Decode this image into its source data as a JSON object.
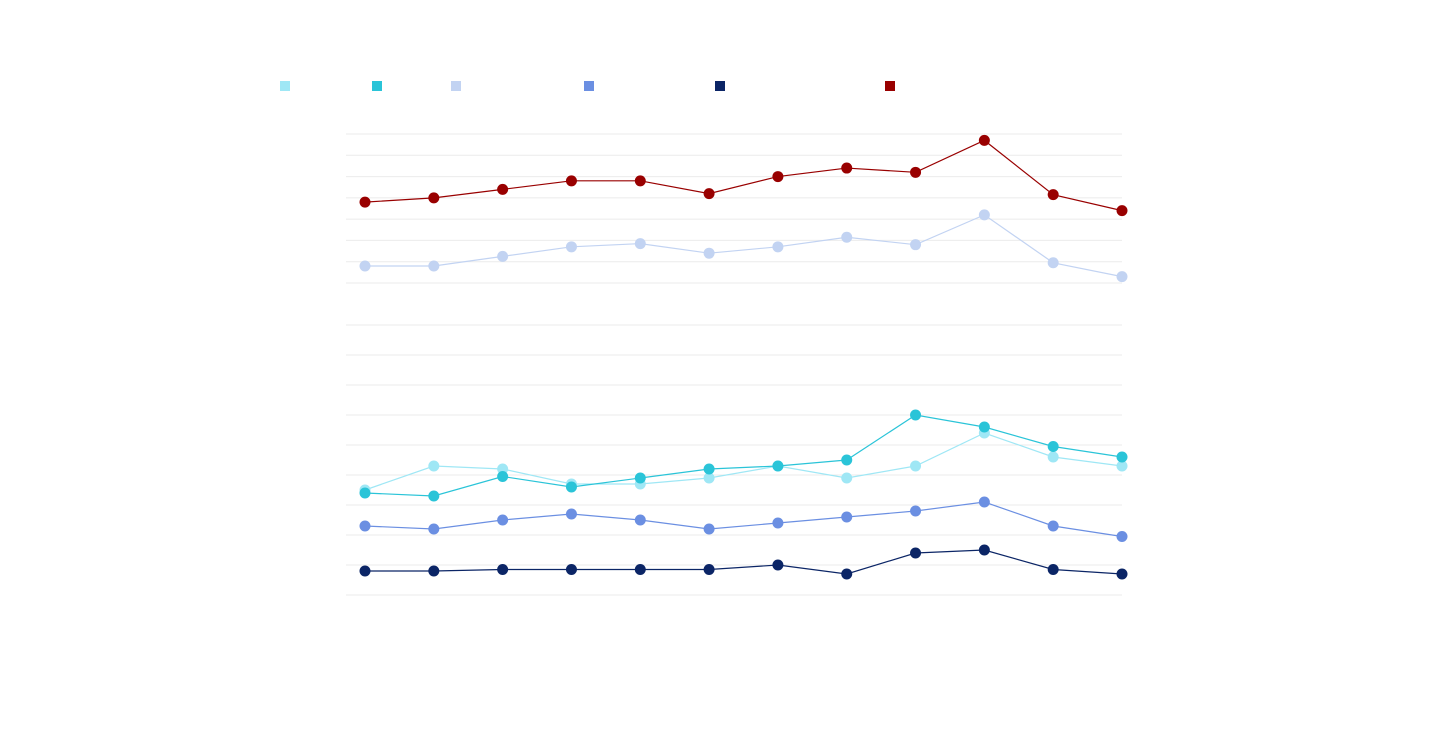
{
  "chart_data": [
    {
      "type": "line",
      "title": "",
      "xlabel": "",
      "ylabel": "",
      "grid": true,
      "legend": "top-left",
      "x": [
        1,
        2,
        3,
        4,
        5,
        6,
        7,
        8,
        9,
        10,
        11,
        12
      ],
      "ylim": [
        0,
        7
      ],
      "series": [
        {
          "color": "#c2d3f2",
          "values": [
            0.8,
            0.8,
            1.25,
            1.7,
            1.85,
            1.4,
            1.7,
            2.15,
            1.8,
            3.2,
            0.95,
            0.3
          ]
        },
        {
          "color": "#990000",
          "values": [
            3.8,
            4.0,
            4.4,
            4.8,
            4.8,
            4.2,
            5.0,
            5.4,
            5.2,
            6.7,
            4.15,
            3.4
          ]
        }
      ]
    },
    {
      "type": "line",
      "title": "",
      "xlabel": "",
      "ylabel": "",
      "grid": true,
      "legend": "top-left",
      "x": [
        1,
        2,
        3,
        4,
        5,
        6,
        7,
        8,
        9,
        10,
        11,
        12
      ],
      "ylim": [
        0,
        9
      ],
      "series": [
        {
          "color": "#9fe7f5",
          "values": [
            3.5,
            4.3,
            4.2,
            3.7,
            3.7,
            3.9,
            4.3,
            3.9,
            4.3,
            5.4,
            4.6,
            4.3
          ]
        },
        {
          "color": "#2ac4d8",
          "values": [
            3.4,
            3.3,
            3.95,
            3.6,
            3.9,
            4.2,
            4.3,
            4.5,
            6.0,
            5.6,
            4.95,
            4.6
          ]
        },
        {
          "color": "#6b8fe2",
          "values": [
            2.3,
            2.2,
            2.5,
            2.7,
            2.5,
            2.2,
            2.4,
            2.6,
            2.8,
            3.1,
            2.3,
            1.95
          ]
        },
        {
          "color": "#0b2566",
          "values": [
            0.8,
            0.8,
            0.85,
            0.85,
            0.85,
            0.85,
            1.0,
            0.7,
            1.4,
            1.5,
            0.85,
            0.7
          ]
        }
      ]
    }
  ],
  "legend": {
    "items": [
      {
        "label": "",
        "color": "#9fe7f5"
      },
      {
        "label": "",
        "color": "#2ac4d8"
      },
      {
        "label": "",
        "color": "#c2d3f2"
      },
      {
        "label": "",
        "color": "#6b8fe2"
      },
      {
        "label": "",
        "color": "#0b2566"
      },
      {
        "label": "",
        "color": "#990000"
      }
    ]
  }
}
